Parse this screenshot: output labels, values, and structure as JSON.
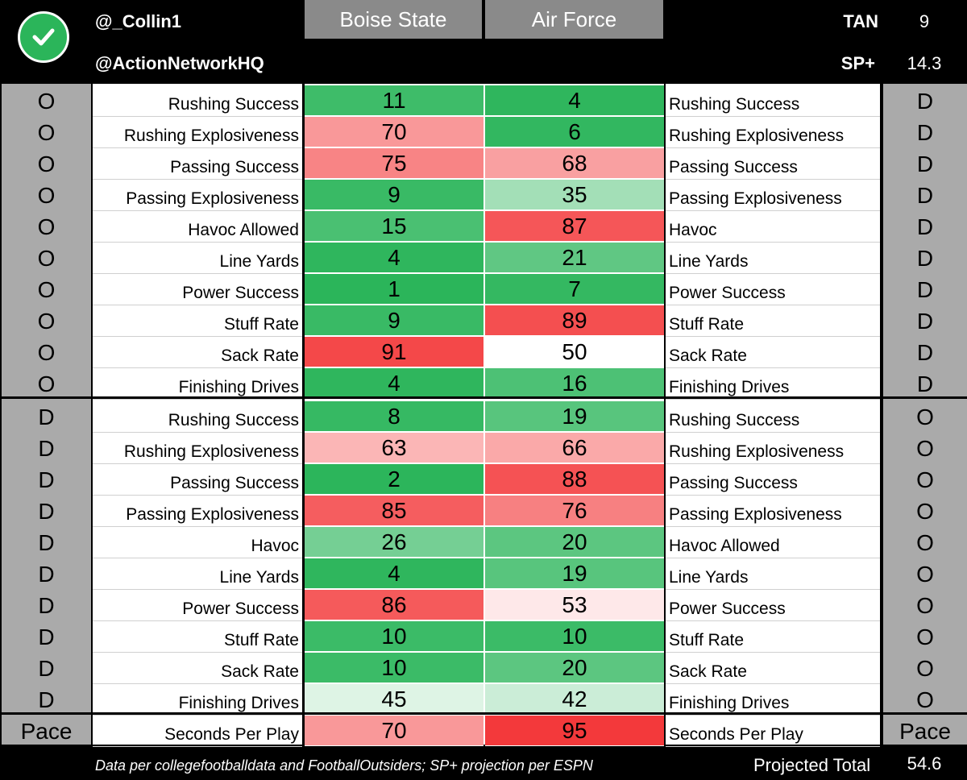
{
  "header": {
    "handle1": "@_Collin1",
    "handle2": "@ActionNetworkHQ",
    "team_left": "Boise State",
    "team_right": "Air Force",
    "tan_label": "TAN",
    "tan_value": "9",
    "sp_label": "SP+",
    "sp_value": "14.3"
  },
  "section1": {
    "side_left": "O",
    "side_right": "D",
    "rows": [
      {
        "left_label": "Rushing Success",
        "left_value": "11",
        "right_value": "4",
        "right_label": "Rushing Success"
      },
      {
        "left_label": "Rushing Explosiveness",
        "left_value": "70",
        "right_value": "6",
        "right_label": "Rushing Explosiveness"
      },
      {
        "left_label": "Passing Success",
        "left_value": "75",
        "right_value": "68",
        "right_label": "Passing Success"
      },
      {
        "left_label": "Passing Explosiveness",
        "left_value": "9",
        "right_value": "35",
        "right_label": "Passing Explosiveness"
      },
      {
        "left_label": "Havoc Allowed",
        "left_value": "15",
        "right_value": "87",
        "right_label": "Havoc"
      },
      {
        "left_label": "Line Yards",
        "left_value": "4",
        "right_value": "21",
        "right_label": "Line Yards"
      },
      {
        "left_label": "Power Success",
        "left_value": "1",
        "right_value": "7",
        "right_label": "Power Success"
      },
      {
        "left_label": "Stuff Rate",
        "left_value": "9",
        "right_value": "89",
        "right_label": "Stuff Rate"
      },
      {
        "left_label": "Sack Rate",
        "left_value": "91",
        "right_value": "50",
        "right_label": "Sack Rate"
      },
      {
        "left_label": "Finishing Drives",
        "left_value": "4",
        "right_value": "16",
        "right_label": "Finishing Drives"
      }
    ]
  },
  "section2": {
    "side_left": "D",
    "side_right": "O",
    "rows": [
      {
        "left_label": "Rushing Success",
        "left_value": "8",
        "right_value": "19",
        "right_label": "Rushing Success"
      },
      {
        "left_label": "Rushing Explosiveness",
        "left_value": "63",
        "right_value": "66",
        "right_label": "Rushing Explosiveness"
      },
      {
        "left_label": "Passing Success",
        "left_value": "2",
        "right_value": "88",
        "right_label": "Passing Success"
      },
      {
        "left_label": "Passing Explosiveness",
        "left_value": "85",
        "right_value": "76",
        "right_label": "Passing Explosiveness"
      },
      {
        "left_label": "Havoc",
        "left_value": "26",
        "right_value": "20",
        "right_label": "Havoc Allowed"
      },
      {
        "left_label": "Line Yards",
        "left_value": "4",
        "right_value": "19",
        "right_label": "Line Yards"
      },
      {
        "left_label": "Power Success",
        "left_value": "86",
        "right_value": "53",
        "right_label": "Power Success"
      },
      {
        "left_label": "Stuff Rate",
        "left_value": "10",
        "right_value": "10",
        "right_label": "Stuff Rate"
      },
      {
        "left_label": "Sack Rate",
        "left_value": "10",
        "right_value": "20",
        "right_label": "Sack Rate"
      },
      {
        "left_label": "Finishing Drives",
        "left_value": "45",
        "right_value": "42",
        "right_label": "Finishing Drives"
      }
    ]
  },
  "pace": {
    "side_left": "Pace",
    "side_right": "Pace",
    "left_label": "Seconds Per Play",
    "left_value": "70",
    "right_value": "95",
    "right_label": "Seconds Per Play"
  },
  "footer": {
    "note": "Data per collegefootballdata and FootballOutsiders; SP+ projection per ESPN",
    "total_label": "Projected Total",
    "total_value": "54.6"
  },
  "colors": {
    "good": "#2bb55a",
    "neutral": "#ffffff",
    "bad": "#f2282a",
    "gray_box": "#8a8a8a",
    "side_gray": "#aaaaaa"
  }
}
